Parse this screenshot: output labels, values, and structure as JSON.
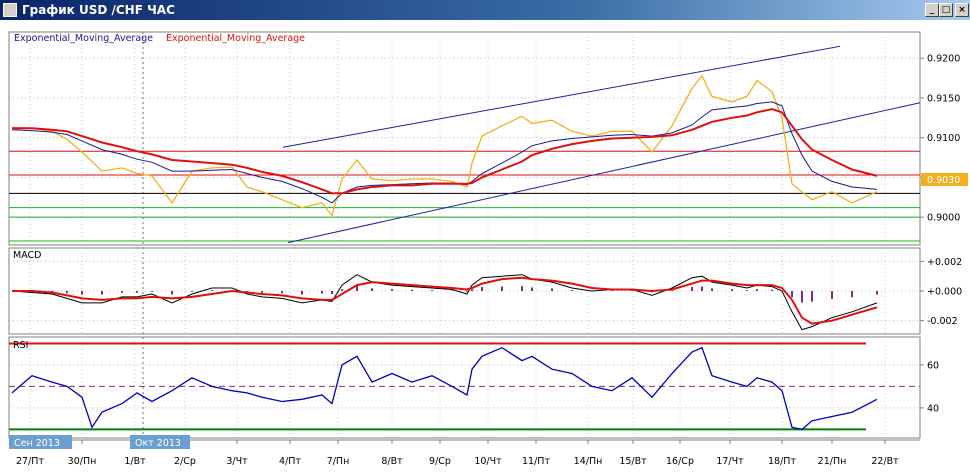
{
  "window": {
    "title": "График USD /CHF ЧАС",
    "minimize_icon": "minimize-icon",
    "maximize_icon": "maximize-icon",
    "close_icon": "close-icon"
  },
  "colors": {
    "price": "#f0b020",
    "ema_fast": "#1a1a8c",
    "ema_slow": "#e01010",
    "channel": "#2020a0",
    "resistance": "#e01010",
    "support": "#20b020",
    "current_line": "#000000",
    "macd_main": "#000000",
    "macd_signal": "#e01010",
    "macd_hist": "#8a2a7a",
    "rsi_line": "#0000c0",
    "rsi_upper": "#e01010",
    "rsi_lower": "#008000",
    "rsi_mid": "#8a2a7a",
    "current_price_badge": "#f0b020"
  },
  "chart_data": [
    {
      "type": "line",
      "panel": "main",
      "legend": [
        "Exponential_Moving_Average",
        "Exponential_Moving_Average"
      ],
      "ylim": [
        0.8965,
        0.9233
      ],
      "yticks": [
        0.9,
        0.905,
        0.91,
        0.915,
        0.92
      ],
      "ytick_labels": [
        "0.9000",
        "0.9050",
        "0.9100",
        "0.9150",
        "0.9200"
      ],
      "current_price": 0.903,
      "current_price_label": "0.9030",
      "grid": true,
      "xlabel": "",
      "ylabel": "",
      "x": [
        0,
        20,
        40,
        55,
        70,
        90,
        110,
        125,
        140,
        160,
        180,
        200,
        220,
        235,
        250,
        270,
        290,
        310,
        320,
        330,
        345,
        360,
        380,
        400,
        420,
        440,
        455,
        460,
        470,
        490,
        510,
        520,
        540,
        560,
        580,
        600,
        620,
        640,
        660,
        680,
        690,
        700,
        720,
        735,
        745,
        760,
        770,
        780,
        790,
        800,
        820,
        840,
        865
      ],
      "price": [
        0.9113,
        0.9112,
        0.9108,
        0.9098,
        0.9082,
        0.9058,
        0.9062,
        0.9055,
        0.9052,
        0.9018,
        0.9058,
        0.9062,
        0.9063,
        0.9038,
        0.9032,
        0.9022,
        0.9012,
        0.9018,
        0.9002,
        0.9048,
        0.9072,
        0.9048,
        0.9046,
        0.9048,
        0.9048,
        0.9045,
        0.9038,
        0.9068,
        0.9102,
        0.9115,
        0.9127,
        0.9118,
        0.9122,
        0.9108,
        0.9102,
        0.9108,
        0.9108,
        0.9082,
        0.9115,
        0.9162,
        0.9178,
        0.9152,
        0.9145,
        0.9152,
        0.9172,
        0.9158,
        0.9125,
        0.9042,
        0.9032,
        0.9022,
        0.9032,
        0.9018,
        0.9032
      ],
      "series": [
        {
          "values": [
            0.911,
            0.9109,
            0.9107,
            0.9104,
            0.9096,
            0.9085,
            0.9079,
            0.9073,
            0.9069,
            0.9058,
            0.9058,
            0.9059,
            0.906,
            0.9055,
            0.905,
            0.9045,
            0.9036,
            0.9025,
            0.9018,
            0.903,
            0.9038,
            0.904,
            0.9041,
            0.9042,
            0.9043,
            0.9043,
            0.9041,
            0.9045,
            0.9055,
            0.9068,
            0.9082,
            0.909,
            0.9096,
            0.9099,
            0.9101,
            0.9103,
            0.9104,
            0.9102,
            0.9106,
            0.9116,
            0.9126,
            0.9135,
            0.9138,
            0.914,
            0.9143,
            0.9145,
            0.914,
            0.9105,
            0.9078,
            0.9058,
            0.9045,
            0.9038,
            0.9035
          ]
        },
        {
          "values": [
            0.9112,
            0.9112,
            0.911,
            0.9108,
            0.9102,
            0.9094,
            0.9088,
            0.9083,
            0.9079,
            0.9072,
            0.907,
            0.9068,
            0.9066,
            0.9062,
            0.9057,
            0.9052,
            0.9044,
            0.9035,
            0.903,
            0.903,
            0.9035,
            0.9038,
            0.904,
            0.904,
            0.9042,
            0.9042,
            0.9042,
            0.9043,
            0.905,
            0.906,
            0.907,
            0.9078,
            0.9086,
            0.9092,
            0.9096,
            0.9099,
            0.91,
            0.9101,
            0.9103,
            0.911,
            0.9115,
            0.912,
            0.9125,
            0.9128,
            0.9132,
            0.9136,
            0.9132,
            0.9115,
            0.9098,
            0.9085,
            0.9072,
            0.906,
            0.9052
          ]
        }
      ],
      "channel_upper": {
        "x": [
          283,
          840
        ],
        "y": [
          0.9088,
          0.9215
        ]
      },
      "channel_lower": {
        "x": [
          288,
          920
        ],
        "y": [
          0.8968,
          0.9144
        ]
      },
      "hlines_red": [
        0.9083,
        0.9053
      ],
      "hlines_green": [
        0.9012,
        0.9,
        0.897
      ]
    },
    {
      "type": "line",
      "panel": "macd",
      "title": "MACD",
      "ylim": [
        -0.0029,
        0.0029
      ],
      "yticks": [
        0.002,
        0.0,
        -0.002
      ],
      "ytick_labels": [
        "+0.002",
        "+0.000",
        "-0.002"
      ],
      "x": [
        0,
        20,
        40,
        55,
        70,
        90,
        110,
        125,
        140,
        160,
        180,
        200,
        220,
        235,
        250,
        270,
        290,
        310,
        320,
        330,
        345,
        360,
        380,
        400,
        420,
        440,
        455,
        460,
        470,
        490,
        510,
        520,
        540,
        560,
        580,
        600,
        620,
        640,
        660,
        680,
        690,
        700,
        720,
        735,
        745,
        760,
        770,
        780,
        790,
        800,
        820,
        840,
        865
      ],
      "series": [
        {
          "values": [
            0.0,
            -0.0001,
            -0.0002,
            -0.0005,
            -0.0008,
            -0.0008,
            -0.0004,
            -0.0004,
            -0.0002,
            -0.0008,
            -0.0002,
            0.0002,
            0.0002,
            -0.0002,
            -0.0004,
            -0.0005,
            -0.0008,
            -0.0006,
            -0.0007,
            0.0004,
            0.0011,
            0.0006,
            0.0004,
            0.0003,
            0.0002,
            0.0001,
            -0.0002,
            0.0004,
            0.0009,
            0.001,
            0.0011,
            0.0008,
            0.0006,
            0.0002,
            0.0,
            0.0001,
            0.0001,
            -0.0003,
            0.0002,
            0.0009,
            0.001,
            0.0006,
            0.0004,
            0.0002,
            0.0004,
            0.0003,
            0.0,
            -0.0014,
            -0.0026,
            -0.0024,
            -0.0018,
            -0.0014,
            -0.0008
          ]
        },
        {
          "values": [
            0.0,
            0.0,
            -0.0001,
            -0.0003,
            -0.0005,
            -0.0006,
            -0.0005,
            -0.0005,
            -0.0004,
            -0.0005,
            -0.0004,
            -0.0002,
            0.0,
            -0.0001,
            -0.0002,
            -0.0003,
            -0.0005,
            -0.0006,
            -0.0006,
            -0.0002,
            0.0004,
            0.0006,
            0.0005,
            0.0004,
            0.0003,
            0.0002,
            0.0001,
            0.0002,
            0.0005,
            0.0008,
            0.0009,
            0.0008,
            0.0007,
            0.0005,
            0.0002,
            0.0001,
            0.0001,
            0.0,
            0.0001,
            0.0005,
            0.0007,
            0.0007,
            0.0005,
            0.0004,
            0.0004,
            0.0004,
            0.0002,
            -0.0006,
            -0.0018,
            -0.0022,
            -0.002,
            -0.0016,
            -0.0011
          ]
        }
      ]
    },
    {
      "type": "line",
      "panel": "rsi",
      "title": "RSI",
      "ylim": [
        26,
        73
      ],
      "yticks": [
        60,
        40
      ],
      "ytick_labels": [
        "60",
        "40"
      ],
      "level_upper": 70,
      "level_mid": 50,
      "level_lower": 30,
      "x": [
        0,
        20,
        40,
        55,
        70,
        80,
        90,
        110,
        125,
        140,
        160,
        180,
        200,
        220,
        235,
        250,
        270,
        290,
        310,
        320,
        330,
        345,
        360,
        380,
        400,
        420,
        440,
        455,
        460,
        470,
        490,
        510,
        520,
        540,
        560,
        580,
        600,
        620,
        640,
        660,
        680,
        690,
        700,
        720,
        735,
        745,
        760,
        770,
        780,
        790,
        800,
        820,
        840,
        865
      ],
      "series": [
        {
          "values": [
            47,
            55,
            52,
            50,
            45,
            31,
            38,
            42,
            47,
            43,
            48,
            54,
            50,
            48,
            47,
            45,
            43,
            44,
            46,
            42,
            60,
            64,
            52,
            56,
            52,
            55,
            50,
            46,
            58,
            64,
            68,
            62,
            64,
            58,
            56,
            50,
            48,
            54,
            45,
            56,
            66,
            68,
            55,
            52,
            50,
            54,
            52,
            48,
            31,
            30,
            34,
            36,
            38,
            44
          ]
        }
      ]
    }
  ],
  "xaxis": {
    "labels": [
      "27/Пт",
      "30/Пн",
      "1/Вт",
      "2/Ср",
      "3/Чт",
      "4/Пт",
      "7/Пн",
      "8/Вт",
      "9/Ср",
      "10/Чт",
      "11/Пт",
      "14/Пн",
      "15/Вт",
      "16/Ср",
      "17/Чт",
      "18/Пт",
      "21/Пн",
      "22/Вт"
    ],
    "months": [
      "Сен 2013",
      "Окт 2013"
    ]
  }
}
